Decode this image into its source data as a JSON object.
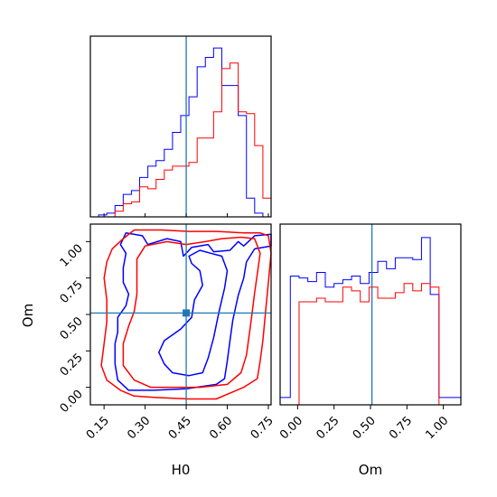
{
  "chart_data": {
    "type": "corner",
    "parameters": [
      "H0",
      "Om"
    ],
    "truth": {
      "H0": 0.45,
      "Om": 0.51
    },
    "colors": {
      "series_a": "#0000ff",
      "series_b": "#ff0000",
      "truth": "#1f77b4"
    },
    "axes": {
      "H0": {
        "label": "H0",
        "range": [
          0.1,
          0.76
        ],
        "ticks": [
          "0.15",
          "0.30",
          "0.45",
          "0.60",
          "0.75"
        ]
      },
      "Om": {
        "label": "Om",
        "range": [
          -0.12,
          1.12
        ],
        "ticks": [
          "0.00",
          "0.25",
          "0.50",
          "0.75",
          "1.00"
        ]
      }
    },
    "hist_H0": {
      "bin_edges": [
        0.1,
        0.13,
        0.16,
        0.19,
        0.22,
        0.25,
        0.28,
        0.31,
        0.34,
        0.37,
        0.4,
        0.43,
        0.46,
        0.49,
        0.52,
        0.55,
        0.58,
        0.61,
        0.64,
        0.67,
        0.7,
        0.73,
        0.76
      ],
      "series": [
        {
          "color": "#0000ff",
          "values": [
            0,
            1,
            2,
            6,
            12,
            14,
            21,
            27,
            30,
            36,
            45,
            54,
            64,
            80,
            85,
            90,
            70,
            70,
            54,
            10,
            2,
            0
          ]
        },
        {
          "color": "#ff0000",
          "values": [
            0,
            0,
            0,
            3,
            7,
            8,
            16,
            15,
            20,
            25,
            27,
            27,
            29,
            42,
            42,
            56,
            79,
            82,
            56,
            55,
            38,
            10
          ]
        }
      ]
    },
    "hist_Om": {
      "bin_edges": [
        -0.12,
        -0.05,
        0.01,
        0.07,
        0.13,
        0.19,
        0.25,
        0.31,
        0.37,
        0.43,
        0.49,
        0.55,
        0.61,
        0.67,
        0.73,
        0.79,
        0.85,
        0.91,
        0.97,
        1.03,
        1.09,
        1.12
      ],
      "series": [
        {
          "color": "#0000ff",
          "values": [
            0.04,
            0.7,
            0.69,
            0.67,
            0.72,
            0.64,
            0.66,
            0.68,
            0.7,
            0.66,
            0.72,
            0.78,
            0.74,
            0.8,
            0.8,
            0.79,
            0.91,
            0.6,
            0.04,
            0.04,
            0.04
          ]
        },
        {
          "color": "#ff0000",
          "values": [
            0,
            0,
            0.56,
            0.56,
            0.58,
            0.56,
            0.56,
            0.64,
            0.62,
            0.56,
            0.64,
            0.58,
            0.58,
            0.61,
            0.66,
            0.62,
            0.66,
            0.64,
            0,
            0,
            0
          ]
        }
      ]
    },
    "contours": [
      {
        "color": "#0000ff",
        "level": "outer",
        "points": [
          [
            0.23,
            1.06
          ],
          [
            0.29,
            1.04
          ],
          [
            0.31,
            0.98
          ],
          [
            0.38,
            1.02
          ],
          [
            0.43,
            1.0
          ],
          [
            0.44,
            0.9
          ],
          [
            0.47,
            0.96
          ],
          [
            0.53,
            0.98
          ],
          [
            0.55,
            0.93
          ],
          [
            0.61,
            0.94
          ],
          [
            0.64,
            1.0
          ],
          [
            0.66,
            0.97
          ],
          [
            0.7,
            1.04
          ],
          [
            0.76,
            1.05
          ],
          [
            0.76,
            0.97
          ],
          [
            0.7,
            0.95
          ],
          [
            0.67,
            0.86
          ],
          [
            0.66,
            0.75
          ],
          [
            0.64,
            0.63
          ],
          [
            0.62,
            0.46
          ],
          [
            0.61,
            0.32
          ],
          [
            0.6,
            0.18
          ],
          [
            0.59,
            0.06
          ],
          [
            0.56,
            0.02
          ],
          [
            0.45,
            -0.01
          ],
          [
            0.33,
            -0.02
          ],
          [
            0.24,
            -0.02
          ],
          [
            0.2,
            0.05
          ],
          [
            0.19,
            0.16
          ],
          [
            0.19,
            0.3
          ],
          [
            0.2,
            0.38
          ],
          [
            0.2,
            0.48
          ],
          [
            0.23,
            0.56
          ],
          [
            0.24,
            0.64
          ],
          [
            0.22,
            0.72
          ],
          [
            0.22,
            0.82
          ],
          [
            0.23,
            0.92
          ],
          [
            0.21,
            0.98
          ],
          [
            0.23,
            1.06
          ]
        ]
      },
      {
        "color": "#0000ff",
        "level": "inner",
        "points": [
          [
            0.46,
            0.9
          ],
          [
            0.47,
            0.85
          ],
          [
            0.5,
            0.8
          ],
          [
            0.51,
            0.7
          ],
          [
            0.48,
            0.6
          ],
          [
            0.47,
            0.48
          ],
          [
            0.43,
            0.4
          ],
          [
            0.37,
            0.32
          ],
          [
            0.35,
            0.24
          ],
          [
            0.37,
            0.16
          ],
          [
            0.4,
            0.1
          ],
          [
            0.46,
            0.08
          ],
          [
            0.51,
            0.1
          ],
          [
            0.53,
            0.2
          ],
          [
            0.55,
            0.34
          ],
          [
            0.57,
            0.52
          ],
          [
            0.59,
            0.68
          ],
          [
            0.6,
            0.8
          ],
          [
            0.58,
            0.9
          ],
          [
            0.54,
            0.92
          ],
          [
            0.5,
            0.94
          ],
          [
            0.46,
            0.9
          ]
        ]
      },
      {
        "color": "#ff0000",
        "level": "outer",
        "points": [
          [
            0.26,
            1.08
          ],
          [
            0.36,
            1.08
          ],
          [
            0.46,
            1.07
          ],
          [
            0.56,
            1.07
          ],
          [
            0.66,
            1.06
          ],
          [
            0.72,
            1.06
          ],
          [
            0.75,
            1.04
          ],
          [
            0.76,
            0.92
          ],
          [
            0.75,
            0.72
          ],
          [
            0.74,
            0.52
          ],
          [
            0.73,
            0.32
          ],
          [
            0.72,
            0.18
          ],
          [
            0.71,
            0.06
          ],
          [
            0.66,
            0.0
          ],
          [
            0.56,
            -0.08
          ],
          [
            0.46,
            -0.08
          ],
          [
            0.34,
            -0.07
          ],
          [
            0.26,
            -0.06
          ],
          [
            0.21,
            -0.02
          ],
          [
            0.16,
            0.05
          ],
          [
            0.14,
            0.15
          ],
          [
            0.15,
            0.3
          ],
          [
            0.16,
            0.45
          ],
          [
            0.16,
            0.6
          ],
          [
            0.15,
            0.75
          ],
          [
            0.16,
            0.86
          ],
          [
            0.18,
            0.95
          ],
          [
            0.22,
            1.02
          ],
          [
            0.26,
            1.08
          ]
        ]
      },
      {
        "color": "#ff0000",
        "level": "inner",
        "points": [
          [
            0.27,
            0.76
          ],
          [
            0.27,
            0.88
          ],
          [
            0.3,
            0.97
          ],
          [
            0.38,
            1.0
          ],
          [
            0.45,
            0.98
          ],
          [
            0.52,
            1.0
          ],
          [
            0.58,
            1.02
          ],
          [
            0.65,
            1.03
          ],
          [
            0.7,
            1.02
          ],
          [
            0.72,
            0.92
          ],
          [
            0.71,
            0.78
          ],
          [
            0.7,
            0.65
          ],
          [
            0.69,
            0.5
          ],
          [
            0.68,
            0.36
          ],
          [
            0.67,
            0.22
          ],
          [
            0.65,
            0.1
          ],
          [
            0.6,
            0.02
          ],
          [
            0.5,
            0.0
          ],
          [
            0.4,
            0.0
          ],
          [
            0.32,
            0.0
          ],
          [
            0.26,
            0.05
          ],
          [
            0.22,
            0.15
          ],
          [
            0.22,
            0.3
          ],
          [
            0.24,
            0.42
          ],
          [
            0.26,
            0.52
          ],
          [
            0.27,
            0.64
          ],
          [
            0.27,
            0.76
          ]
        ]
      }
    ]
  }
}
